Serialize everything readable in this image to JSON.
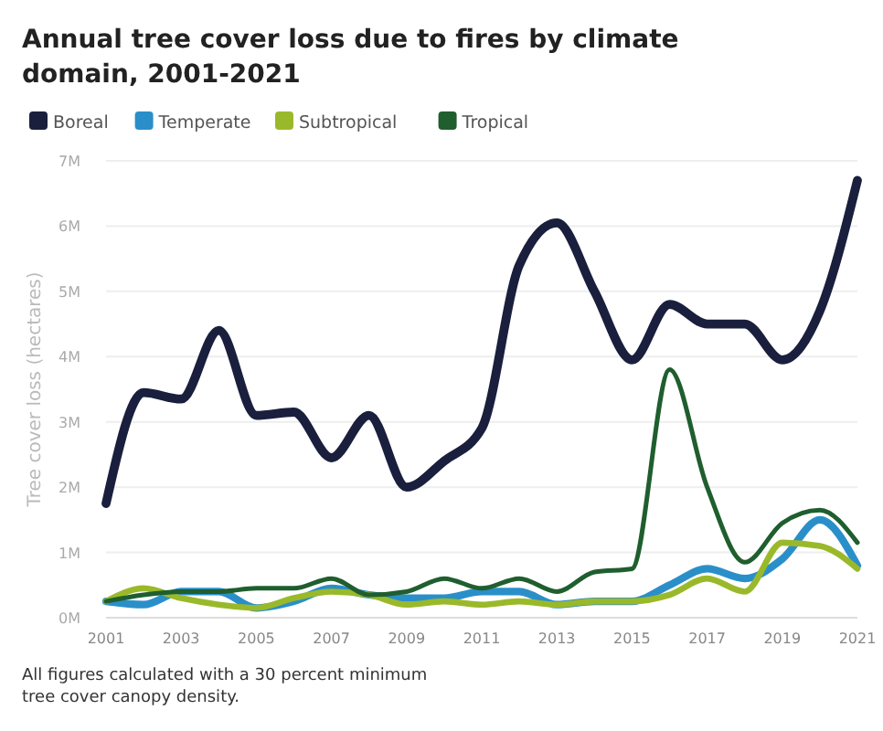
{
  "chart_data": {
    "type": "line",
    "title": "Annual tree cover loss due to fires by climate domain, 2001-2021",
    "ylabel": "Tree cover loss (hectares)",
    "x": [
      2001,
      2002,
      2003,
      2004,
      2005,
      2006,
      2007,
      2008,
      2009,
      2010,
      2011,
      2012,
      2013,
      2014,
      2015,
      2016,
      2017,
      2018,
      2019,
      2020,
      2021
    ],
    "xlim": [
      2001,
      2021
    ],
    "xticks": [
      2001,
      2003,
      2005,
      2007,
      2009,
      2011,
      2013,
      2015,
      2017,
      2019,
      2021
    ],
    "ylim": [
      0,
      7
    ],
    "yticks": [
      {
        "value": 0,
        "label": "0M"
      },
      {
        "value": 1,
        "label": "1M"
      },
      {
        "value": 2,
        "label": "2M"
      },
      {
        "value": 3,
        "label": "3M"
      },
      {
        "value": 4,
        "label": "4M"
      },
      {
        "value": 5,
        "label": "5M"
      },
      {
        "value": 6,
        "label": "6M"
      },
      {
        "value": 7,
        "label": "7M"
      }
    ],
    "grid": "y",
    "legend": "top left",
    "marker": "none",
    "line_style": "solid",
    "series": [
      {
        "name": "Boreal",
        "color": "#1a1f3d",
        "values": [
          1.75,
          3.45,
          3.35,
          4.4,
          3.1,
          3.15,
          2.45,
          3.1,
          2.0,
          2.4,
          2.9,
          5.4,
          6.05,
          5.0,
          3.95,
          4.8,
          4.5,
          4.5,
          3.95,
          4.7,
          6.7
        ]
      },
      {
        "name": "Temperate",
        "color": "#2a8fc9",
        "values": [
          0.25,
          0.2,
          0.4,
          0.4,
          0.15,
          0.25,
          0.45,
          0.35,
          0.3,
          0.3,
          0.4,
          0.4,
          0.2,
          0.25,
          0.25,
          0.5,
          0.75,
          0.6,
          0.9,
          1.5,
          0.8
        ]
      },
      {
        "name": "Subtropical",
        "color": "#9ab92a",
        "values": [
          0.25,
          0.45,
          0.3,
          0.2,
          0.15,
          0.3,
          0.4,
          0.35,
          0.2,
          0.25,
          0.2,
          0.25,
          0.2,
          0.25,
          0.25,
          0.35,
          0.6,
          0.4,
          1.15,
          1.1,
          0.75
        ]
      },
      {
        "name": "Tropical",
        "color": "#1f5e2e",
        "values": [
          0.25,
          0.35,
          0.4,
          0.4,
          0.45,
          0.45,
          0.6,
          0.35,
          0.4,
          0.6,
          0.45,
          0.6,
          0.4,
          0.7,
          0.75,
          3.8,
          2.0,
          0.85,
          1.45,
          1.65,
          1.15
        ]
      }
    ],
    "annotations": [
      "All figures calculated with a 30 percent minimum tree cover canopy density."
    ]
  }
}
